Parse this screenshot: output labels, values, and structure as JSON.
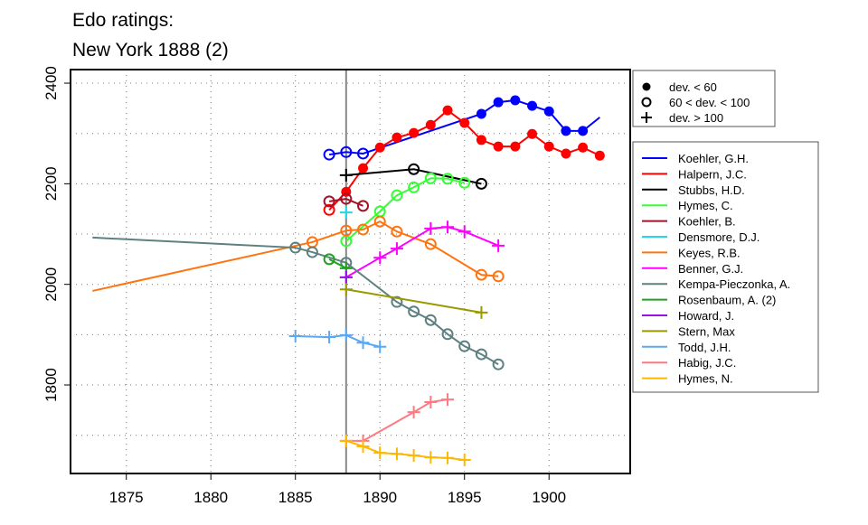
{
  "chart_data": {
    "type": "line",
    "title_lines": [
      "Edo ratings:",
      "New York 1888 (2)"
    ],
    "xlabel": "",
    "ylabel": "",
    "xlim": [
      1871.7,
      1904.8
    ],
    "ylim": [
      1624,
      2427
    ],
    "xticks": [
      1875,
      1880,
      1885,
      1890,
      1895,
      1900
    ],
    "yticks": [
      1800,
      2000,
      2200,
      2400
    ],
    "xgrid": [
      1875,
      1880,
      1885,
      1890,
      1895,
      1900
    ],
    "ygrid": [
      1700,
      1800,
      1900,
      2000,
      2100,
      2200,
      2300,
      2400
    ],
    "grid": "dotted",
    "reference_year": 1888,
    "marker_legend": [
      {
        "marker": "f",
        "label": "dev. < 60"
      },
      {
        "marker": "o",
        "label": "60 < dev. < 100"
      },
      {
        "marker": "p",
        "label": "dev. > 100"
      }
    ],
    "legend_placement": "right",
    "series": [
      {
        "name": "Koehler, G.H.",
        "color": "#0000ff",
        "points": [
          [
            1887,
            2258,
            "o"
          ],
          [
            1888,
            2263,
            "o"
          ],
          [
            1889,
            2260,
            "o"
          ],
          [
            1896,
            2339,
            "f"
          ],
          [
            1897,
            2362,
            "f"
          ],
          [
            1898,
            2366,
            "f"
          ],
          [
            1899,
            2355,
            "f"
          ],
          [
            1900,
            2344,
            "f"
          ],
          [
            1901,
            2305,
            "f"
          ],
          [
            1902,
            2305,
            "f"
          ],
          [
            1903,
            2332,
            "n"
          ]
        ]
      },
      {
        "name": "Halpern, J.C.",
        "color": "#ff0000",
        "points": [
          [
            1887,
            2148,
            "o"
          ],
          [
            1888,
            2184,
            "f"
          ],
          [
            1889,
            2231,
            "f"
          ],
          [
            1890,
            2272,
            "f"
          ],
          [
            1891,
            2292,
            "f"
          ],
          [
            1892,
            2301,
            "f"
          ],
          [
            1893,
            2317,
            "f"
          ],
          [
            1894,
            2346,
            "f"
          ],
          [
            1895,
            2321,
            "f"
          ],
          [
            1896,
            2287,
            "f"
          ],
          [
            1897,
            2274,
            "f"
          ],
          [
            1898,
            2274,
            "f"
          ],
          [
            1899,
            2299,
            "f"
          ],
          [
            1900,
            2274,
            "f"
          ],
          [
            1901,
            2260,
            "f"
          ],
          [
            1902,
            2272,
            "f"
          ],
          [
            1903,
            2256,
            "f"
          ]
        ]
      },
      {
        "name": "Stubbs, H.D.",
        "color": "#000000",
        "points": [
          [
            1888,
            2217,
            "p"
          ],
          [
            1892,
            2229,
            "o"
          ],
          [
            1896,
            2200,
            "o"
          ]
        ]
      },
      {
        "name": "Hymes, C.",
        "color": "#33ff33",
        "points": [
          [
            1888,
            2086,
            "o"
          ],
          [
            1890,
            2145,
            "o"
          ],
          [
            1891,
            2177,
            "o"
          ],
          [
            1892,
            2193,
            "o"
          ],
          [
            1893,
            2211,
            "o"
          ],
          [
            1894,
            2210,
            "o"
          ],
          [
            1895,
            2202,
            "o"
          ]
        ]
      },
      {
        "name": "Koehler, B.",
        "color": "#a0142a",
        "points": [
          [
            1887,
            2165,
            "o"
          ],
          [
            1888,
            2170,
            "o"
          ],
          [
            1889,
            2156,
            "o"
          ]
        ]
      },
      {
        "name": "Densmore, D.J.",
        "color": "#22d8e8",
        "points": [
          [
            1888,
            2143,
            "p"
          ]
        ]
      },
      {
        "name": "Keyes, R.B.",
        "color": "#ff7410",
        "points": [
          [
            1873,
            1987,
            "n"
          ],
          [
            1886,
            2084,
            "o"
          ],
          [
            1888,
            2107,
            "o"
          ],
          [
            1889,
            2109,
            "o"
          ],
          [
            1890,
            2125,
            "o"
          ],
          [
            1891,
            2105,
            "o"
          ],
          [
            1893,
            2080,
            "o"
          ],
          [
            1896,
            2019,
            "o"
          ],
          [
            1897,
            2016,
            "o"
          ]
        ]
      },
      {
        "name": "Benner, G.J.",
        "color": "#ff00ff",
        "points": [
          [
            1888,
            2014,
            "p"
          ],
          [
            1890,
            2053,
            "p"
          ],
          [
            1891,
            2071,
            "p"
          ],
          [
            1893,
            2111,
            "p"
          ],
          [
            1894,
            2114,
            "p"
          ],
          [
            1895,
            2105,
            "p"
          ],
          [
            1897,
            2077,
            "p"
          ]
        ]
      },
      {
        "name": "Kempa-Pieczonka, A.",
        "color": "#5e8080",
        "points": [
          [
            1873,
            2093,
            "n"
          ],
          [
            1885,
            2073,
            "o"
          ],
          [
            1886,
            2064,
            "o"
          ],
          [
            1888,
            2043,
            "o"
          ],
          [
            1891,
            1965,
            "o"
          ],
          [
            1892,
            1946,
            "o"
          ],
          [
            1893,
            1929,
            "o"
          ],
          [
            1894,
            1901,
            "o"
          ],
          [
            1895,
            1877,
            "o"
          ],
          [
            1896,
            1861,
            "o"
          ],
          [
            1897,
            1841,
            "o"
          ]
        ]
      },
      {
        "name": "Rosenbaum, A. (2)",
        "color": "#22a022",
        "points": [
          [
            1887,
            2050,
            "o"
          ],
          [
            1888,
            2032,
            "p"
          ]
        ]
      },
      {
        "name": "Howard, J.",
        "color": "#9a10e8",
        "points": [
          [
            1888,
            2014,
            "p"
          ]
        ]
      },
      {
        "name": "Stern, Max",
        "color": "#999900",
        "points": [
          [
            1888,
            1990,
            "p"
          ],
          [
            1896,
            1944,
            "p"
          ]
        ]
      },
      {
        "name": "Todd, J.H.",
        "color": "#5aa8f0",
        "points": [
          [
            1885,
            1897,
            "p"
          ],
          [
            1887,
            1895,
            "p"
          ],
          [
            1888,
            1899,
            "p"
          ],
          [
            1889,
            1884,
            "p"
          ],
          [
            1890,
            1876,
            "p"
          ]
        ]
      },
      {
        "name": "Habig, J.C.",
        "color": "#ff7a80",
        "points": [
          [
            1888,
            1689,
            "p"
          ],
          [
            1889,
            1689,
            "p"
          ],
          [
            1892,
            1746,
            "p"
          ],
          [
            1893,
            1766,
            "p"
          ],
          [
            1894,
            1771,
            "p"
          ]
        ]
      },
      {
        "name": "Hymes, N.",
        "color": "#ffb800",
        "points": [
          [
            1888,
            1689,
            "p"
          ],
          [
            1889,
            1678,
            "p"
          ],
          [
            1890,
            1665,
            "p"
          ],
          [
            1891,
            1663,
            "p"
          ],
          [
            1892,
            1660,
            "p"
          ],
          [
            1893,
            1656,
            "p"
          ],
          [
            1894,
            1655,
            "p"
          ],
          [
            1895,
            1651,
            "p"
          ]
        ]
      }
    ]
  }
}
